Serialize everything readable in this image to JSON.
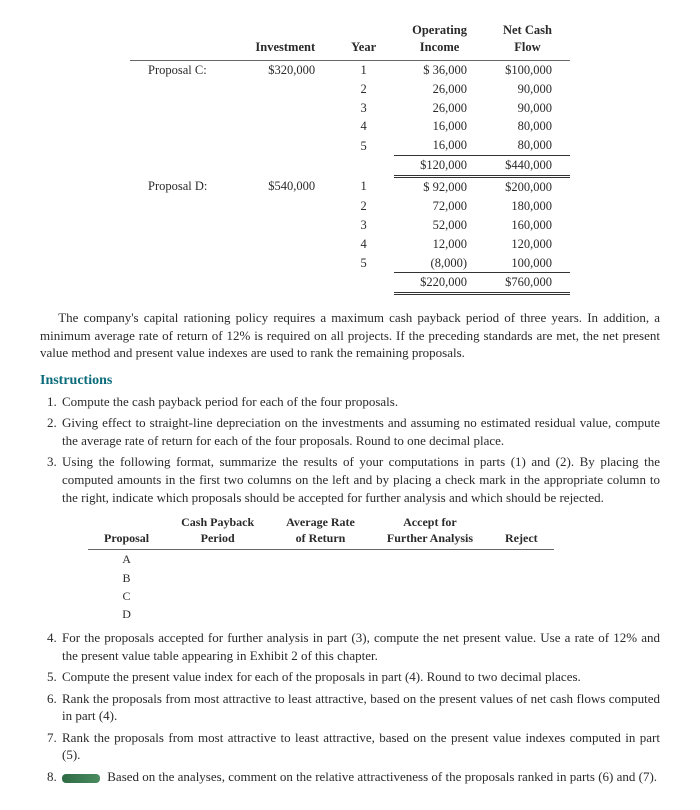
{
  "data_table": {
    "headers": {
      "blank": "",
      "investment": "Investment",
      "year": "Year",
      "op_income": "Operating\nIncome",
      "cash_flow": "Net Cash\nFlow"
    },
    "proposals": [
      {
        "label": "Proposal C:",
        "investment": "$320,000",
        "rows": [
          {
            "year": "1",
            "op": "$ 36,000",
            "cf": "$100,000"
          },
          {
            "year": "2",
            "op": "26,000",
            "cf": "90,000"
          },
          {
            "year": "3",
            "op": "26,000",
            "cf": "90,000"
          },
          {
            "year": "4",
            "op": "16,000",
            "cf": "80,000"
          },
          {
            "year": "5",
            "op": "16,000",
            "cf": "80,000"
          }
        ],
        "total": {
          "op": "$120,000",
          "cf": "$440,000"
        }
      },
      {
        "label": "Proposal D:",
        "investment": "$540,000",
        "rows": [
          {
            "year": "1",
            "op": "$ 92,000",
            "cf": "$200,000"
          },
          {
            "year": "2",
            "op": "72,000",
            "cf": "180,000"
          },
          {
            "year": "3",
            "op": "52,000",
            "cf": "160,000"
          },
          {
            "year": "4",
            "op": "12,000",
            "cf": "120,000"
          },
          {
            "year": "5",
            "op": "(8,000)",
            "cf": "100,000"
          }
        ],
        "total": {
          "op": "$220,000",
          "cf": "$760,000"
        }
      }
    ]
  },
  "body_text": {
    "para1": "The company's capital rationing policy requires a maximum cash payback period of three years. In addition, a minimum average rate of return of 12% is required on all projects. If the preceding standards are met, the net present value method and present value indexes are used to rank the remaining proposals."
  },
  "instructions_heading": "Instructions",
  "instructions": {
    "i1": "Compute the cash payback period for each of the four proposals.",
    "i2": "Giving effect to straight-line depreciation on the investments and assuming no estimated residual value, compute the average rate of return for each of the four proposals. Round to one decimal place.",
    "i3": "Using the following format, summarize the results of your computations in parts (1) and (2). By placing the computed amounts in the first two columns on the left and by placing a check mark in the appropriate column to the right, indicate which proposals should be accepted for further analysis and which should be rejected.",
    "i4": "For the proposals accepted for further analysis in part (3), compute the net present value. Use a rate of 12% and the present value table appearing in Exhibit 2 of this chapter.",
    "i5": "Compute the present value index for each of the proposals in part (4). Round to two decimal places.",
    "i6": "Rank the proposals from most attractive to least attractive, based on the present values of net cash flows computed in part (4).",
    "i7": "Rank the proposals from most attractive to least attractive, based on the present value indexes computed in part (5).",
    "i8_suffix": "Based on the analyses, comment on the relative attractiveness of the proposals ranked in parts (6) and (7)."
  },
  "mini_table": {
    "headers": {
      "proposal": "Proposal",
      "payback": "Cash Payback\nPeriod",
      "arr": "Average Rate\nof Return",
      "accept": "Accept for\nFurther Analysis",
      "reject": "Reject"
    },
    "rows": [
      "A",
      "B",
      "C",
      "D"
    ]
  }
}
